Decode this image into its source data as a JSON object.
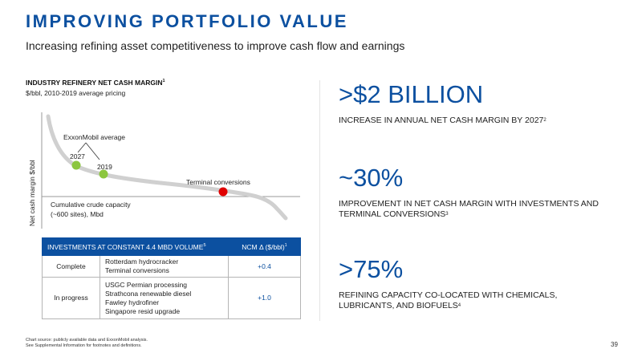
{
  "header": {
    "title": "IMPROVING PORTFOLIO VALUE",
    "subtitle": "Increasing refining asset competitiveness to improve cash flow and earnings"
  },
  "chart_data": {
    "type": "line",
    "title": "INDUSTRY REFINERY NET CASH MARGIN",
    "title_sup": "1",
    "subtitle": "$/bbl, 2010-2019 average pricing",
    "ylabel": "Net cash margin $/bbl",
    "xlabel": "Cumulative crude capacity (~600 sites), Mbd",
    "xlabel_line1": "Cumulative crude capacity",
    "xlabel_line2": "(~600 sites), Mbd",
    "curve_color": "#d0d0d0",
    "annotations": {
      "exxon_average": "ExxonMobil average",
      "label_2027": "2027",
      "label_2019": "2019",
      "terminal": "Terminal conversions"
    },
    "points": [
      {
        "name": "2027",
        "color": "#8cc63f"
      },
      {
        "name": "2019",
        "color": "#8cc63f"
      },
      {
        "name": "Terminal conversions",
        "color": "#e00000"
      }
    ]
  },
  "table": {
    "header_col1": "INVESTMENTS AT CONSTANT 4.4 MBD VOLUME",
    "header_col1_sup": "5",
    "header_col2": "NCM Δ ($/bbl)",
    "header_col2_sup": "1",
    "rows": [
      {
        "status": "Complete",
        "items": [
          "Rotterdam hydrocracker",
          "Terminal conversions"
        ],
        "value": "+0.4"
      },
      {
        "status": "In progress",
        "items": [
          "USGC Permian processing",
          "Strathcona renewable diesel",
          "Fawley hydrofiner",
          "Singapore resid upgrade"
        ],
        "value": "+1.0"
      }
    ]
  },
  "metrics": [
    {
      "value": ">$2 BILLION",
      "description": "INCREASE IN ANNUAL NET CASH MARGIN BY 2027",
      "sup": "2"
    },
    {
      "value": "~30%",
      "description": "IMPROVEMENT IN NET CASH MARGIN WITH INVESTMENTS AND TERMINAL CONVERSIONS",
      "sup": "3"
    },
    {
      "value": ">75%",
      "description": "REFINING CAPACITY CO-LOCATED WITH CHEMICALS, LUBRICANTS, AND BIOFUELS",
      "sup": "4"
    }
  ],
  "footer": {
    "line1": "Chart source: publicly available data and ExxonMobil analysis.",
    "line2": "See Supplemental Information for footnotes and definitions.",
    "page": "39"
  },
  "colors": {
    "brand_blue": "#0c50a0",
    "green_marker": "#8cc63f",
    "red_marker": "#e00000"
  }
}
